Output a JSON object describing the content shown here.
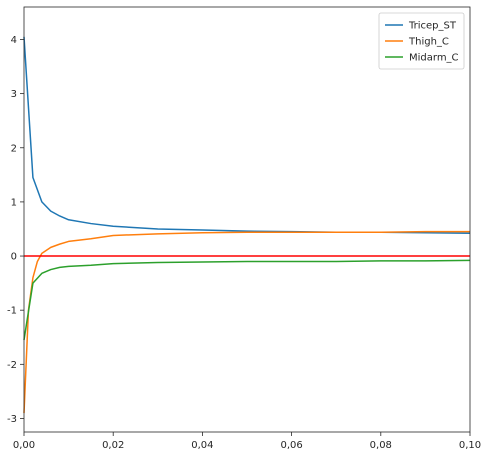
{
  "chart_data": {
    "type": "line",
    "xlim": [
      0,
      0.1
    ],
    "ylim": [
      -3.25,
      4.6
    ],
    "x_ticks": [
      0,
      0.02,
      0.04,
      0.06,
      0.08,
      0.1
    ],
    "x_tick_labels": [
      "0,00",
      "0,02",
      "0,04",
      "0,06",
      "0,08",
      "0,10"
    ],
    "y_ticks": [
      -3,
      -2,
      -1,
      0,
      1,
      2,
      3,
      4
    ],
    "y_tick_labels": [
      "-3",
      "-2",
      "-1",
      "0",
      "1",
      "2",
      "3",
      "4"
    ],
    "grid": false,
    "legend_position": "top-right",
    "reference_line": {
      "y": 0,
      "color": "#ff0000"
    },
    "series": [
      {
        "name": "Tricep_ST",
        "color": "#1f77b4",
        "x": [
          0,
          0.002,
          0.004,
          0.006,
          0.008,
          0.01,
          0.015,
          0.02,
          0.03,
          0.04,
          0.05,
          0.06,
          0.07,
          0.08,
          0.09,
          0.1
        ],
        "y": [
          4.05,
          1.45,
          1.0,
          0.83,
          0.74,
          0.67,
          0.6,
          0.55,
          0.5,
          0.48,
          0.46,
          0.45,
          0.44,
          0.44,
          0.43,
          0.42
        ]
      },
      {
        "name": "Thigh_C",
        "color": "#ff7f0e",
        "x": [
          0,
          0.001,
          0.002,
          0.003,
          0.004,
          0.006,
          0.008,
          0.01,
          0.015,
          0.02,
          0.03,
          0.04,
          0.05,
          0.06,
          0.07,
          0.08,
          0.09,
          0.1
        ],
        "y": [
          -2.9,
          -1.0,
          -0.4,
          -0.1,
          0.05,
          0.16,
          0.22,
          0.27,
          0.32,
          0.38,
          0.41,
          0.43,
          0.44,
          0.44,
          0.44,
          0.44,
          0.45,
          0.45
        ]
      },
      {
        "name": "Midarm_C",
        "color": "#2ca02c",
        "x": [
          0,
          0.002,
          0.004,
          0.006,
          0.008,
          0.01,
          0.015,
          0.02,
          0.03,
          0.04,
          0.05,
          0.06,
          0.07,
          0.08,
          0.09,
          0.1
        ],
        "y": [
          -1.55,
          -0.5,
          -0.32,
          -0.25,
          -0.21,
          -0.19,
          -0.17,
          -0.14,
          -0.12,
          -0.11,
          -0.1,
          -0.1,
          -0.1,
          -0.09,
          -0.09,
          -0.08
        ]
      }
    ]
  }
}
